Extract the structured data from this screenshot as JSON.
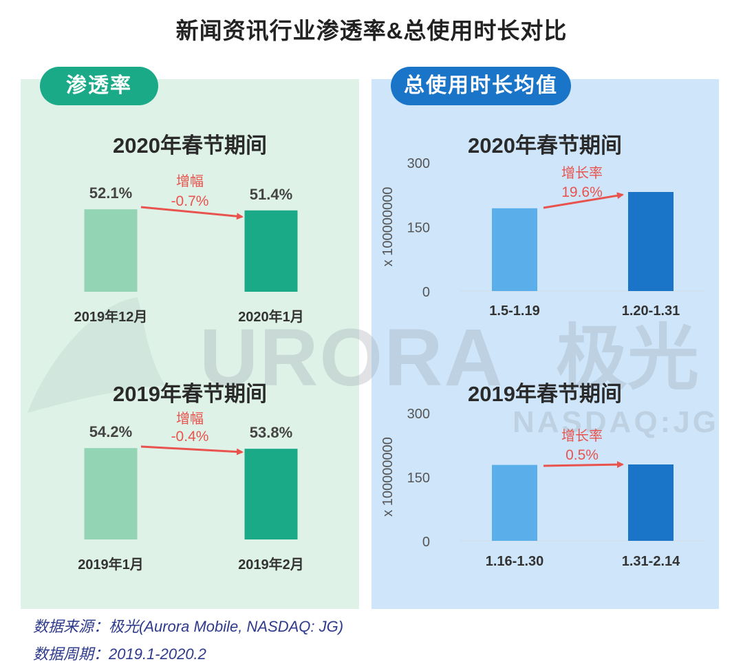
{
  "title": "新闻资讯行业渗透率&总使用时长对比",
  "panels": {
    "left": {
      "label": "渗透率"
    },
    "right": {
      "label": "总使用时长均值"
    }
  },
  "watermark": {
    "brand": "URORA",
    "brand_cn": "极光",
    "ticker": "NASDAQ:JG"
  },
  "chart_data": [
    {
      "type": "bar",
      "title": "2020年春节期间",
      "categories": [
        "2019年12月",
        "2020年1月"
      ],
      "values": [
        52.1,
        51.4
      ],
      "value_labels": [
        "52.1%",
        "51.4%"
      ],
      "annotation": {
        "label": "增幅",
        "value": "-0.7%"
      },
      "colors": [
        "#93d4b4",
        "#1aaa88"
      ],
      "ylim": [
        0,
        100
      ]
    },
    {
      "type": "bar",
      "title": "2019年春节期间",
      "categories": [
        "2019年1月",
        "2019年2月"
      ],
      "values": [
        54.2,
        53.8
      ],
      "value_labels": [
        "54.2%",
        "53.8%"
      ],
      "annotation": {
        "label": "增幅",
        "value": "-0.4%"
      },
      "colors": [
        "#93d4b4",
        "#1aaa88"
      ],
      "ylim": [
        0,
        100
      ]
    },
    {
      "type": "bar",
      "title": "2020年春节期间",
      "categories": [
        "1.5-1.19",
        "1.20-1.31"
      ],
      "values": [
        193,
        231
      ],
      "annotation": {
        "label": "增长率",
        "value": "19.6%"
      },
      "ylabel": "x 100000000",
      "yticks": [
        0,
        150,
        300
      ],
      "ylim": [
        0,
        300
      ],
      "colors": [
        "#5aaeea",
        "#1a74c7"
      ]
    },
    {
      "type": "bar",
      "title": "2019年春节期间",
      "categories": [
        "1.16-1.30",
        "1.31-2.14"
      ],
      "values": [
        178,
        179
      ],
      "annotation": {
        "label": "增长率",
        "value": "0.5%"
      },
      "ylabel": "x 100000000",
      "yticks": [
        0,
        150,
        300
      ],
      "ylim": [
        0,
        300
      ],
      "colors": [
        "#5aaeea",
        "#1a74c7"
      ]
    }
  ],
  "source": {
    "line1": "数据来源：极光(Aurora Mobile, NASDAQ: JG)",
    "line2": "数据周期：2019.1-2020.2"
  }
}
